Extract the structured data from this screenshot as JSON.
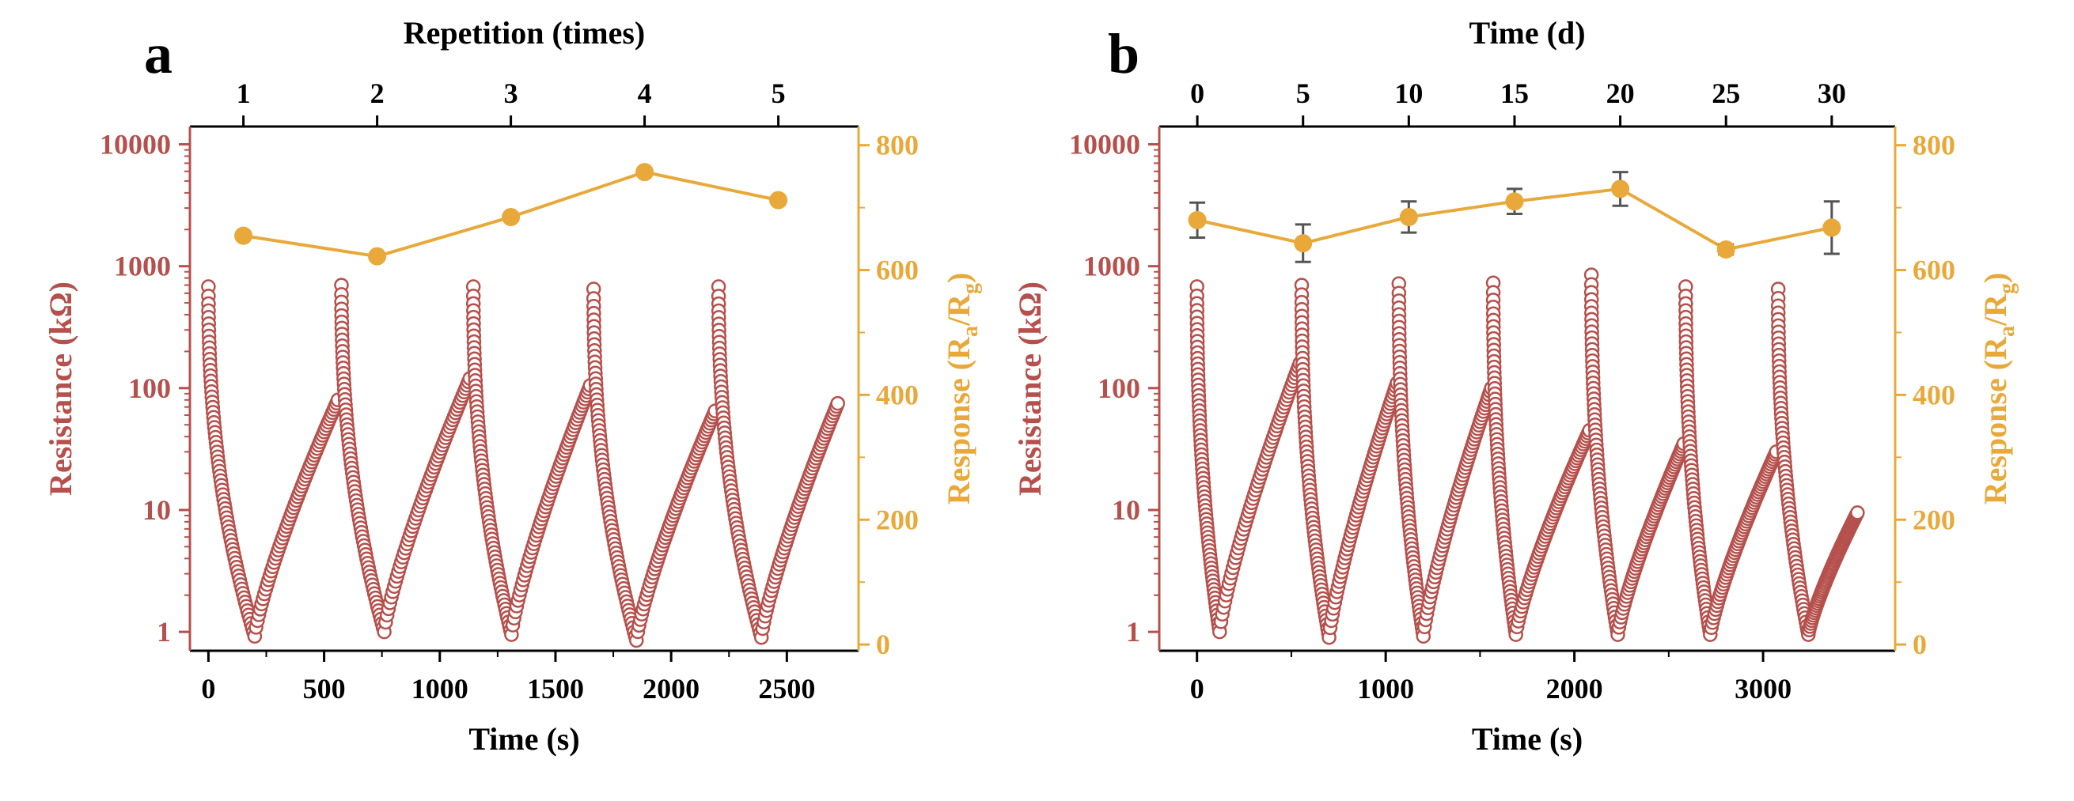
{
  "chart_data": [
    {
      "panel_label": "a",
      "type": "scatter",
      "title": "",
      "xlabel": "Time (s)",
      "ylabel": "Resistance (kΩ)",
      "top_xlabel": "Repetition (times)",
      "right_ylabel_parts": {
        "main": "Response (R",
        "sub1": "a",
        "slash": "/R",
        "sub2": "g",
        "close": ")"
      },
      "xlim": [
        -80,
        2810
      ],
      "xticks": [
        0,
        500,
        1000,
        1500,
        2000,
        2500
      ],
      "ylim_log": [
        0.7,
        14000
      ],
      "yticks": [
        1,
        10,
        100,
        1000,
        10000
      ],
      "top_xlim": [
        0.6,
        5.6
      ],
      "top_xticks": [
        1,
        2,
        3,
        4,
        5
      ],
      "right_ylim": [
        -10,
        830
      ],
      "right_yticks": [
        0,
        200,
        400,
        600,
        800
      ],
      "colors": {
        "resistance": "#b5504c",
        "response": "#e8a93a",
        "axis_right": "#e8a93a",
        "axis_left": "#b5504c"
      },
      "resistance_cycles": [
        {
          "start": 0,
          "peak": 680,
          "fall_end": 200,
          "min": 0.92,
          "rise_end": 560,
          "end_value": 80
        },
        {
          "start": 575,
          "peak": 700,
          "fall_end": 760,
          "min": 1.0,
          "rise_end": 1130,
          "end_value": 120
        },
        {
          "start": 1145,
          "peak": 680,
          "fall_end": 1310,
          "min": 0.95,
          "rise_end": 1650,
          "end_value": 105
        },
        {
          "start": 1665,
          "peak": 650,
          "fall_end": 1850,
          "min": 0.85,
          "rise_end": 2190,
          "end_value": 65
        },
        {
          "start": 2205,
          "peak": 680,
          "fall_end": 2390,
          "min": 0.9,
          "rise_end": 2720,
          "end_value": 75
        }
      ],
      "response_series": {
        "name": "Response",
        "x": [
          1,
          2,
          3,
          4,
          5
        ],
        "values": [
          655,
          622,
          685,
          757,
          712
        ],
        "errors": null
      }
    },
    {
      "panel_label": "b",
      "type": "scatter",
      "title": "",
      "xlabel": "Time (s)",
      "ylabel": "Resistance (kΩ)",
      "top_xlabel": "Time (d)",
      "right_ylabel_parts": {
        "main": "Response (R",
        "sub1": "a",
        "slash": "/R",
        "sub2": "g",
        "close": ")"
      },
      "xlim": [
        -200,
        3700
      ],
      "xticks": [
        0,
        1000,
        2000,
        3000
      ],
      "ylim_log": [
        0.7,
        14000
      ],
      "yticks": [
        1,
        10,
        100,
        1000,
        10000
      ],
      "top_xlim": [
        -1.8,
        33
      ],
      "top_xticks": [
        0,
        5,
        10,
        15,
        20,
        25,
        30
      ],
      "right_ylim": [
        -10,
        830
      ],
      "right_yticks": [
        0,
        200,
        400,
        600,
        800
      ],
      "colors": {
        "resistance": "#b5504c",
        "response": "#e8a93a",
        "axis_right": "#e8a93a",
        "axis_left": "#b5504c",
        "errorbar": "#555555"
      },
      "resistance_cycles": [
        {
          "start": 0,
          "peak": 680,
          "fall_end": 120,
          "min": 1.0,
          "rise_end": 545,
          "end_value": 160
        },
        {
          "start": 555,
          "peak": 700,
          "fall_end": 700,
          "min": 0.9,
          "rise_end": 1060,
          "end_value": 110
        },
        {
          "start": 1070,
          "peak": 720,
          "fall_end": 1200,
          "min": 0.92,
          "rise_end": 1560,
          "end_value": 100
        },
        {
          "start": 1570,
          "peak": 730,
          "fall_end": 1690,
          "min": 0.95,
          "rise_end": 2080,
          "end_value": 45
        },
        {
          "start": 2090,
          "peak": 850,
          "fall_end": 2230,
          "min": 0.95,
          "rise_end": 2580,
          "end_value": 35
        },
        {
          "start": 2590,
          "peak": 680,
          "fall_end": 2720,
          "min": 0.95,
          "rise_end": 3070,
          "end_value": 30
        },
        {
          "start": 3080,
          "peak": 650,
          "fall_end": 3240,
          "min": 0.95,
          "rise_end": 3500,
          "end_value": 9.5
        }
      ],
      "response_series": {
        "name": "Response",
        "x": [
          0,
          5,
          10,
          15,
          20,
          25,
          30
        ],
        "values": [
          680,
          643,
          685,
          710,
          730,
          633,
          668
        ],
        "errors": [
          28,
          30,
          25,
          20,
          27,
          8,
          42
        ]
      }
    }
  ]
}
